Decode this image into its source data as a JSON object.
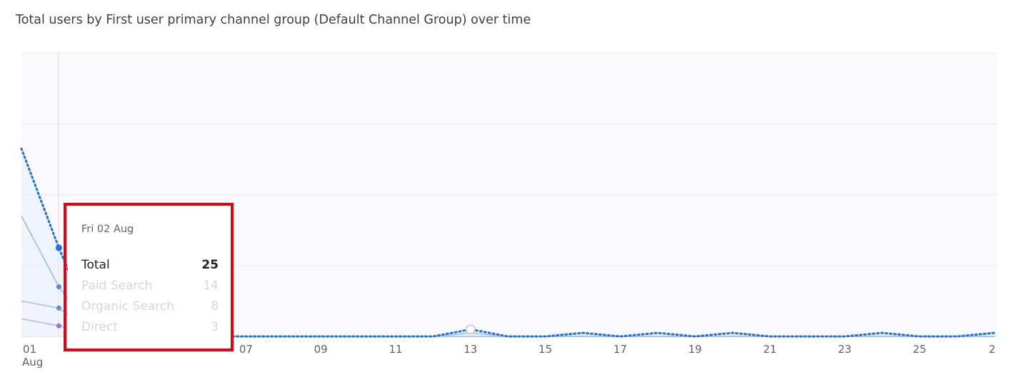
{
  "title": "Total users by First user primary channel group (Default Channel Group) over time",
  "colors": {
    "total": "#1a73e8",
    "paid_search": "#4a90d9",
    "organic_search": "#5b8fe0",
    "direct": "#8c7ae6",
    "highlight_box": "#e8000b",
    "grid": "#e8eaed"
  },
  "tooltip": {
    "date": "Fri 02 Aug",
    "rows": [
      {
        "label": "Total",
        "value": "25"
      },
      {
        "label": "Paid Search",
        "value": "14"
      },
      {
        "label": "Organic Search",
        "value": "8"
      },
      {
        "label": "Direct",
        "value": "3"
      }
    ]
  },
  "chart_data": {
    "type": "line",
    "title": "Total users by First user primary channel group (Default Channel Group) over time",
    "x_tick_labels": [
      "01",
      "07",
      "09",
      "11",
      "13",
      "15",
      "17",
      "19",
      "21",
      "23",
      "25",
      "2"
    ],
    "x_tick_sublabel": "Aug",
    "x": [
      "01 Aug",
      "02 Aug",
      "03 Aug",
      "04 Aug",
      "05 Aug",
      "06 Aug",
      "07 Aug",
      "08 Aug",
      "09 Aug",
      "10 Aug",
      "11 Aug",
      "12 Aug",
      "13 Aug",
      "14 Aug",
      "15 Aug",
      "16 Aug",
      "17 Aug",
      "18 Aug",
      "19 Aug",
      "20 Aug",
      "21 Aug",
      "22 Aug",
      "23 Aug",
      "24 Aug",
      "25 Aug",
      "26 Aug",
      "27 Aug"
    ],
    "ylim": [
      0,
      80
    ],
    "grid": true,
    "series": [
      {
        "name": "Total",
        "style": "dotted",
        "values": [
          53,
          25,
          0,
          0,
          0,
          0,
          0,
          0,
          0,
          0,
          0,
          0,
          2,
          0,
          0,
          1,
          0,
          1,
          0,
          1,
          0,
          0,
          0,
          1,
          0,
          0,
          1
        ]
      },
      {
        "name": "Paid Search",
        "values": [
          34,
          14,
          0,
          0,
          0,
          0,
          0,
          0,
          0,
          0,
          0,
          0,
          1,
          0,
          0,
          0,
          0,
          0,
          0,
          0,
          0,
          0,
          0,
          0,
          0,
          0,
          0
        ]
      },
      {
        "name": "Organic Search",
        "values": [
          10,
          8,
          0,
          0,
          0,
          0,
          0,
          0,
          0,
          0,
          0,
          0,
          0,
          0,
          0,
          0,
          0,
          0,
          0,
          0,
          0,
          0,
          0,
          0,
          0,
          0,
          0
        ]
      },
      {
        "name": "Direct",
        "values": [
          5,
          3,
          0,
          0,
          0,
          0,
          0,
          0,
          0,
          0,
          0,
          0,
          0,
          0,
          0,
          0,
          0,
          0,
          0,
          0,
          0,
          0,
          0,
          0,
          0,
          0,
          0
        ]
      }
    ]
  }
}
